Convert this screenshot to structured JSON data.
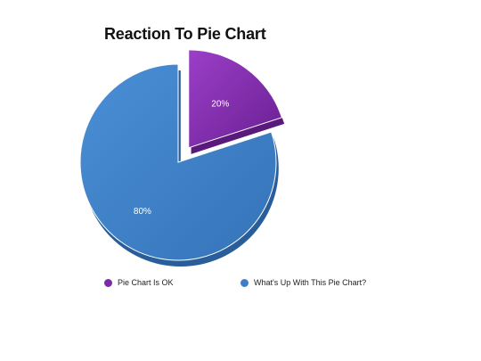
{
  "chart_data": {
    "type": "pie",
    "title": "Reaction To Pie Chart",
    "series": [
      {
        "name": "Pie Chart Is OK",
        "value": 20,
        "label": "20%",
        "color": "#7d2aa8",
        "exploded": true
      },
      {
        "name": "What's Up With This Pie Chart?",
        "value": 80,
        "label": "80%",
        "color": "#3d7fc7",
        "exploded": false
      }
    ],
    "legend_position": "bottom"
  }
}
